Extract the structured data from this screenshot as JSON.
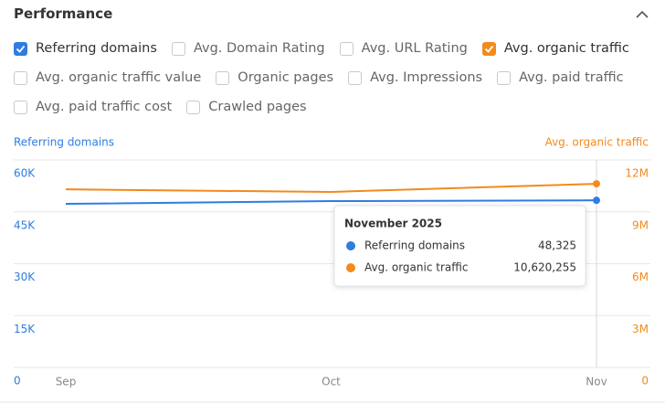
{
  "header": {
    "title": "Performance"
  },
  "checkboxes": [
    {
      "label": "Referring domains",
      "checked": true,
      "color": "#2e7de1"
    },
    {
      "label": "Avg. Domain Rating",
      "checked": false
    },
    {
      "label": "Avg. URL Rating",
      "checked": false
    },
    {
      "label": "Avg. organic traffic",
      "checked": true,
      "color": "#f38a1c"
    },
    {
      "label": "Avg. organic traffic value",
      "checked": false
    },
    {
      "label": "Organic pages",
      "checked": false
    },
    {
      "label": "Avg. Impressions",
      "checked": false
    },
    {
      "label": "Avg. paid traffic",
      "checked": false
    },
    {
      "label": "Avg. paid traffic cost",
      "checked": false
    },
    {
      "label": "Crawled pages",
      "checked": false
    }
  ],
  "chart_data": {
    "type": "line",
    "y_label": "Referring domains",
    "y2_label": "Avg. organic traffic",
    "categories": [
      "Sep",
      "Oct",
      "Nov"
    ],
    "series": [
      {
        "name": "Referring domains",
        "color": "#2e7de1",
        "values": [
          47300,
          48100,
          48325
        ]
      },
      {
        "name": "Avg. organic traffic",
        "color": "#f38a1c",
        "axis": "y2",
        "values": [
          10300000,
          10150000,
          10620255
        ]
      }
    ],
    "ylim": [
      0,
      60000
    ],
    "yticks": [
      0,
      {
        "value": 15000,
        "label": "15K"
      },
      {
        "value": 30000,
        "label": "30K"
      },
      {
        "value": 45000,
        "label": "45K"
      },
      {
        "value": 60000,
        "label": "60K"
      }
    ],
    "y2lim": [
      0,
      12000000
    ],
    "y2ticks": [
      0,
      {
        "value": 3000000,
        "label": "3M"
      },
      {
        "value": 6000000,
        "label": "6M"
      },
      {
        "value": 9000000,
        "label": "9M"
      },
      {
        "value": 12000000,
        "label": "12M"
      }
    ],
    "grid": true,
    "tooltip": {
      "title": "November 2025",
      "value_labels": [
        "48,325",
        "10,620,255"
      ]
    }
  }
}
